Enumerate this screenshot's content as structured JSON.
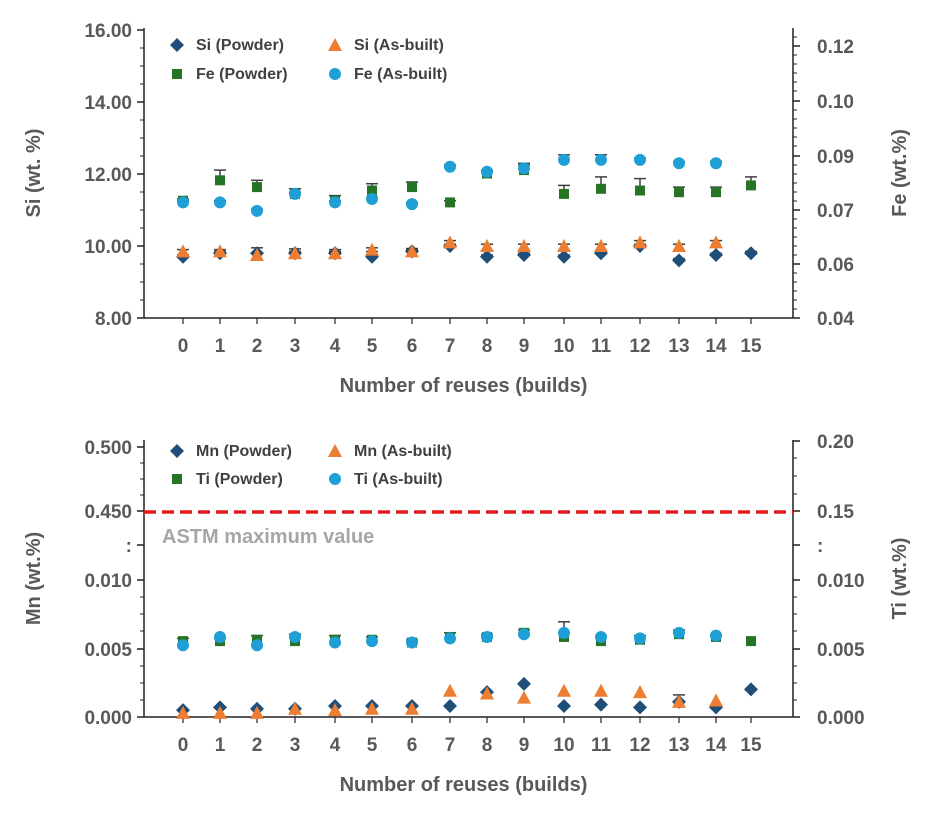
{
  "chart_data": [
    {
      "type": "scatter",
      "title": "",
      "xlabel": "Number of reuses (builds)",
      "ylabel_left": "Si (wt. %)",
      "ylabel_right": "Fe (wt.%)",
      "x_ticks": [
        "0",
        "1",
        "2",
        "3",
        "4",
        "5",
        "6",
        "7",
        "8",
        "9",
        "10",
        "11",
        "12",
        "13",
        "14",
        "15"
      ],
      "y_left_ticks": [
        "16.00",
        "14.00",
        "12.00",
        "10.00",
        "8.00"
      ],
      "y_right_ticks": [
        "0.12",
        "0.10",
        "0.09",
        "0.07",
        "0.06",
        "0.04"
      ],
      "y_left_range": [
        8,
        16
      ],
      "y_right_range": [
        0.04,
        0.124
      ],
      "legend_position": "top-left",
      "series": [
        {
          "name": "Si (Powder)",
          "axis": "left",
          "marker": "diamond",
          "color": "#1f4e79",
          "x": [
            0,
            1,
            2,
            3,
            4,
            5,
            6,
            7,
            8,
            9,
            10,
            11,
            12,
            13,
            14,
            15
          ],
          "y": [
            9.7,
            9.8,
            9.8,
            9.8,
            9.8,
            9.7,
            9.85,
            10.0,
            9.7,
            9.75,
            9.7,
            9.8,
            10.0,
            9.6,
            9.75,
            9.8
          ],
          "err": [
            0.05,
            0.05,
            0.15,
            0.12,
            0.1,
            0.15,
            0.08,
            0.05,
            0.05,
            0.05,
            0.05,
            0.05,
            0.05,
            0.05,
            0.05,
            0.05
          ]
        },
        {
          "name": "Si (As-built)",
          "axis": "left",
          "marker": "triangle",
          "color": "#ed7d31",
          "x": [
            0,
            1,
            2,
            3,
            4,
            5,
            6,
            7,
            8,
            9,
            10,
            11,
            12,
            13,
            14
          ],
          "y": [
            9.85,
            9.85,
            9.75,
            9.8,
            9.8,
            9.9,
            9.85,
            10.1,
            10.0,
            10.0,
            10.0,
            10.0,
            10.1,
            10.0,
            10.1
          ],
          "err": [
            0.05,
            0.05,
            0.05,
            0.05,
            0.05,
            0.05,
            0.05,
            0.05,
            0.05,
            0.05,
            0.05,
            0.05,
            0.05,
            0.05,
            0.05
          ]
        },
        {
          "name": "Fe (Powder)",
          "axis": "right",
          "marker": "square",
          "color": "#267426",
          "x": [
            0,
            1,
            2,
            3,
            4,
            5,
            6,
            7,
            8,
            9,
            10,
            11,
            12,
            13,
            14,
            15
          ],
          "y": [
            0.0745,
            0.0805,
            0.0785,
            0.0765,
            0.0745,
            0.0775,
            0.0785,
            0.074,
            0.0825,
            0.0835,
            0.0765,
            0.078,
            0.0775,
            0.077,
            0.077,
            0.079
          ],
          "err": [
            0.0005,
            0.003,
            0.002,
            0.0015,
            0.0015,
            0.002,
            0.0015,
            0.0005,
            0.0005,
            0.0015,
            0.0025,
            0.0035,
            0.0035,
            0.0015,
            0.0015,
            0.0025
          ]
        },
        {
          "name": "Fe (As-built)",
          "axis": "right",
          "marker": "circle",
          "color": "#1ea0d6",
          "x": [
            0,
            1,
            2,
            3,
            4,
            5,
            6,
            7,
            8,
            9,
            10,
            11,
            12,
            13,
            14
          ],
          "y": [
            0.074,
            0.074,
            0.0715,
            0.0765,
            0.074,
            0.075,
            0.0735,
            0.0845,
            0.083,
            0.084,
            0.0865,
            0.0865,
            0.0865,
            0.0855,
            0.0855
          ],
          "err": [
            0.0005,
            0.0005,
            0.0005,
            0.0005,
            0.0005,
            0.0005,
            0.0005,
            0.0005,
            0.0005,
            0.0015,
            0.0015,
            0.0015,
            0.0005,
            0.0005,
            0.0005
          ]
        }
      ]
    },
    {
      "type": "scatter",
      "title": "",
      "xlabel": "Number of reuses (builds)",
      "ylabel_left": "Mn (wt.%)",
      "ylabel_right": "Ti  (wt.%)",
      "x_ticks": [
        "0",
        "1",
        "2",
        "3",
        "4",
        "5",
        "6",
        "7",
        "8",
        "9",
        "10",
        "11",
        "12",
        "13",
        "14",
        "15"
      ],
      "y_left_ticks": [
        "0.500",
        "0.450",
        ":",
        "0.010",
        "0.005",
        "0.000"
      ],
      "y_right_ticks": [
        "0.20",
        "0.15",
        ":",
        "0.010",
        "0.005",
        "0.000"
      ],
      "axis_break": true,
      "legend_position": "top-left",
      "reference_line": {
        "label": "ASTM maximum value",
        "value_left": 0.45,
        "value_right": 0.15,
        "color": "#e31b1b"
      },
      "series": [
        {
          "name": "Mn (Powder)",
          "axis": "left",
          "marker": "diamond",
          "color": "#1f4e79",
          "x": [
            0,
            1,
            2,
            3,
            4,
            5,
            6,
            7,
            8,
            9,
            10,
            11,
            12,
            13,
            14,
            15
          ],
          "y": [
            0.0005,
            0.0007,
            0.0006,
            0.0006,
            0.0008,
            0.0008,
            0.0008,
            0.0008,
            0.0018,
            0.0024,
            0.0008,
            0.0009,
            0.0007,
            0.0011,
            0.0007,
            0.002
          ],
          "err": [
            0.0001,
            0.0001,
            0.0001,
            0.0001,
            0.0001,
            0.0001,
            0.0001,
            0.0001,
            0.0001,
            0.0001,
            0.0001,
            0.0001,
            0.0001,
            0.0005,
            0.0001,
            0.0001
          ]
        },
        {
          "name": "Mn (As-built)",
          "axis": "left",
          "marker": "triangle",
          "color": "#ed7d31",
          "x": [
            0,
            1,
            2,
            3,
            4,
            5,
            6,
            7,
            8,
            9,
            10,
            11,
            12,
            13,
            14
          ],
          "y": [
            0.0003,
            0.0003,
            0.0003,
            0.0006,
            0.0005,
            0.0006,
            0.0006,
            0.0019,
            0.0017,
            0.0014,
            0.0019,
            0.0019,
            0.0018,
            0.0011,
            0.0012
          ],
          "err": [
            0.0001,
            0.0001,
            0.0001,
            0.0001,
            0.0001,
            0.0001,
            0.0001,
            0.0001,
            0.0001,
            0.0001,
            0.0001,
            0.0001,
            0.0001,
            0.0001,
            0.0001
          ]
        },
        {
          "name": "Ti (Powder)",
          "axis": "right",
          "marker": "square",
          "color": "#267426",
          "x": [
            0,
            1,
            2,
            3,
            4,
            5,
            6,
            7,
            8,
            9,
            10,
            11,
            12,
            13,
            14,
            15
          ],
          "y": [
            0.0055,
            0.0055,
            0.0056,
            0.0055,
            0.0056,
            0.0056,
            0.0054,
            0.0058,
            0.0058,
            0.0061,
            0.0058,
            0.0055,
            0.0056,
            0.006,
            0.0058,
            0.0055
          ],
          "err": [
            0.0002,
            0.0002,
            0.0003,
            0.0005,
            0.0003,
            0.0002,
            0.0002,
            0.0003,
            0.0002,
            0.0002,
            0.0003,
            0.0003,
            0.0003,
            0.0003,
            0.0002,
            0.0001
          ]
        },
        {
          "name": "Ti (As-built)",
          "axis": "right",
          "marker": "circle",
          "color": "#1ea0d6",
          "x": [
            0,
            1,
            2,
            3,
            4,
            5,
            6,
            7,
            8,
            9,
            10,
            11,
            12,
            13,
            14
          ],
          "y": [
            0.0052,
            0.0058,
            0.0052,
            0.0058,
            0.0054,
            0.0055,
            0.0054,
            0.0057,
            0.0058,
            0.006,
            0.0061,
            0.0058,
            0.0057,
            0.0061,
            0.0059
          ],
          "err": [
            0.0001,
            0.0001,
            0.0001,
            0.0002,
            0.0001,
            0.0001,
            0.0001,
            0.0001,
            0.0001,
            0.0001,
            0.0008,
            0.0001,
            0.0001,
            0.0001,
            0.0001
          ]
        }
      ]
    }
  ]
}
